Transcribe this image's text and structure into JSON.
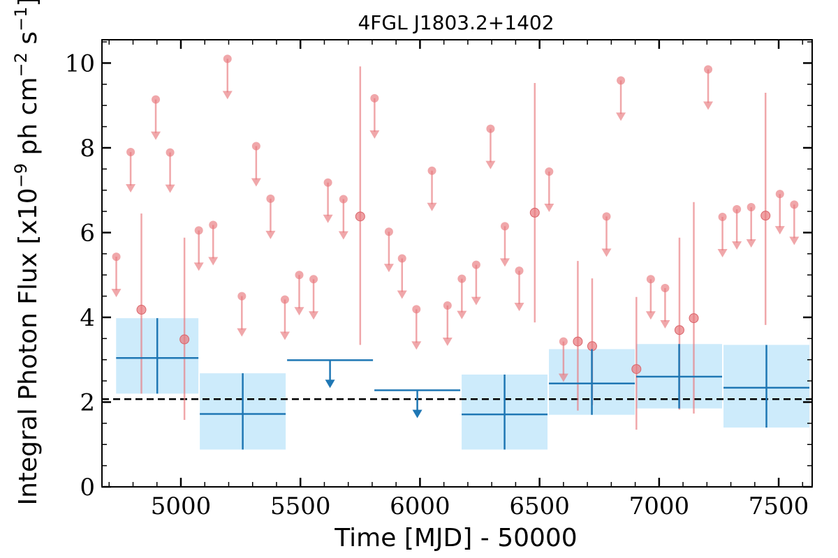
{
  "chart_data": {
    "type": "scatter",
    "title": "4FGL J1803.2+1402",
    "xlabel": "Time [MJD] - 50000",
    "ylabel": "Integral Photon Flux [x10",
    "ylabel_exp1": "−9",
    "ylabel_mid": " ph cm",
    "ylabel_exp2": "−2",
    "ylabel_mid2": " s",
    "ylabel_exp3": "−1",
    "ylabel_end": "]",
    "xlim": [
      4670,
      7640
    ],
    "ylim": [
      0,
      10.55
    ],
    "xticks": [
      5000,
      5500,
      6000,
      6500,
      7000,
      7500
    ],
    "xtick_labels": [
      "5000",
      "5500",
      "6000",
      "6500",
      "7000",
      "7500"
    ],
    "yticks": [
      0,
      2,
      4,
      6,
      8,
      10
    ],
    "ytick_labels": [
      "0",
      "2",
      "4",
      "6",
      "8",
      "10"
    ],
    "grid": false,
    "colors": {
      "red_points": "#e8787c",
      "blue": "#1f77b4",
      "band": "#cdebfb",
      "baseline": "#000000"
    },
    "baseline_flux": 2.07,
    "short_bin_points": [
      {
        "x": 4835,
        "y": 4.18,
        "lo": 2.2,
        "hi": 6.45
      },
      {
        "x": 5015,
        "y": 3.48,
        "lo": 1.58,
        "hi": 5.88
      },
      {
        "x": 5750,
        "y": 6.38,
        "lo": 3.35,
        "hi": 9.92
      },
      {
        "x": 6480,
        "y": 6.47,
        "lo": 3.88,
        "hi": 9.53
      },
      {
        "x": 6660,
        "y": 3.43,
        "lo": 1.8,
        "hi": 5.33
      },
      {
        "x": 6720,
        "y": 3.32,
        "lo": 1.93,
        "hi": 4.92
      },
      {
        "x": 6905,
        "y": 2.78,
        "lo": 1.35,
        "hi": 4.48
      },
      {
        "x": 7085,
        "y": 3.7,
        "lo": 1.82,
        "hi": 5.88
      },
      {
        "x": 7145,
        "y": 3.98,
        "lo": 1.73,
        "hi": 6.72
      },
      {
        "x": 7445,
        "y": 6.4,
        "lo": 3.82,
        "hi": 9.3
      }
    ],
    "short_bin_upper_limits": [
      {
        "x": 4730,
        "y": 5.43
      },
      {
        "x": 4790,
        "y": 7.9
      },
      {
        "x": 4895,
        "y": 9.14
      },
      {
        "x": 4955,
        "y": 7.89
      },
      {
        "x": 5075,
        "y": 6.05
      },
      {
        "x": 5135,
        "y": 6.18
      },
      {
        "x": 5195,
        "y": 10.1
      },
      {
        "x": 5255,
        "y": 4.5
      },
      {
        "x": 5315,
        "y": 8.04
      },
      {
        "x": 5375,
        "y": 6.8
      },
      {
        "x": 5435,
        "y": 4.42
      },
      {
        "x": 5495,
        "y": 5.0
      },
      {
        "x": 5555,
        "y": 4.9
      },
      {
        "x": 5615,
        "y": 7.18
      },
      {
        "x": 5680,
        "y": 6.79
      },
      {
        "x": 5810,
        "y": 9.17
      },
      {
        "x": 5870,
        "y": 6.02
      },
      {
        "x": 5925,
        "y": 5.39
      },
      {
        "x": 5985,
        "y": 4.19
      },
      {
        "x": 6050,
        "y": 7.46
      },
      {
        "x": 6115,
        "y": 4.28
      },
      {
        "x": 6175,
        "y": 4.91
      },
      {
        "x": 6235,
        "y": 5.24
      },
      {
        "x": 6295,
        "y": 8.45
      },
      {
        "x": 6355,
        "y": 6.15
      },
      {
        "x": 6415,
        "y": 5.1
      },
      {
        "x": 6540,
        "y": 7.44
      },
      {
        "x": 6600,
        "y": 3.43
      },
      {
        "x": 6780,
        "y": 6.38
      },
      {
        "x": 6840,
        "y": 9.59
      },
      {
        "x": 6965,
        "y": 4.9
      },
      {
        "x": 7025,
        "y": 4.69
      },
      {
        "x": 7205,
        "y": 9.85
      },
      {
        "x": 7265,
        "y": 6.37
      },
      {
        "x": 7325,
        "y": 6.55
      },
      {
        "x": 7385,
        "y": 6.6
      },
      {
        "x": 7505,
        "y": 6.91
      },
      {
        "x": 7565,
        "y": 6.66
      }
    ],
    "long_bins": [
      {
        "x0": 4700,
        "x1": 5050,
        "y": 3.04,
        "lo": 2.2,
        "hi": 3.98,
        "upper_limit": false
      },
      {
        "x0": 5050,
        "x1": 5415,
        "y": 1.72,
        "lo": 0.88,
        "hi": 2.68,
        "upper_limit": false
      },
      {
        "x0": 5415,
        "x1": 5780,
        "y": 2.99,
        "upper_limit": true
      },
      {
        "x0": 5780,
        "x1": 6145,
        "y": 2.28,
        "upper_limit": true
      },
      {
        "x0": 6145,
        "x1": 6510,
        "y": 1.71,
        "lo": 0.88,
        "hi": 2.65,
        "upper_limit": false
      },
      {
        "x0": 6510,
        "x1": 6875,
        "y": 2.44,
        "lo": 1.7,
        "hi": 3.25,
        "upper_limit": false
      },
      {
        "x0": 6875,
        "x1": 7240,
        "y": 2.6,
        "lo": 1.85,
        "hi": 3.37,
        "upper_limit": false
      },
      {
        "x0": 7240,
        "x1": 7605,
        "y": 2.34,
        "lo": 1.4,
        "hi": 3.35,
        "upper_limit": false
      }
    ]
  }
}
